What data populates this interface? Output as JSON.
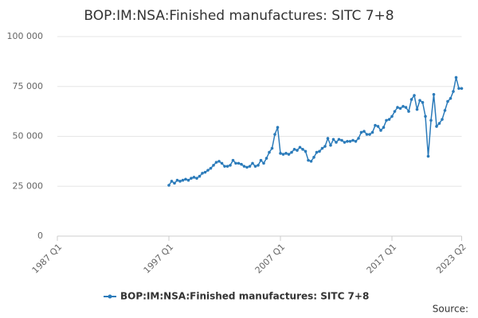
{
  "chart_data": {
    "type": "line",
    "title": "BOP:IM:NSA:Finished manufactures: SITC 7+8",
    "source": "Source:",
    "categories": [
      "1987 Q1",
      null,
      null,
      null,
      null,
      null,
      null,
      null,
      null,
      null,
      null,
      null,
      null,
      null,
      null,
      null,
      null,
      null,
      null,
      null,
      null,
      null,
      null,
      null,
      null,
      null,
      null,
      null,
      null,
      null,
      null,
      null,
      null,
      null,
      null,
      null,
      null,
      null,
      null,
      null,
      "1997 Q1",
      null,
      null,
      null,
      null,
      null,
      null,
      null,
      null,
      null,
      null,
      null,
      null,
      null,
      null,
      null,
      null,
      null,
      null,
      null,
      null,
      null,
      null,
      null,
      null,
      null,
      null,
      null,
      null,
      null,
      null,
      null,
      null,
      null,
      null,
      null,
      null,
      null,
      null,
      null,
      "2007 Q1",
      null,
      null,
      null,
      null,
      null,
      null,
      null,
      null,
      null,
      null,
      null,
      null,
      null,
      null,
      null,
      null,
      null,
      null,
      null,
      null,
      null,
      null,
      null,
      null,
      null,
      null,
      null,
      null,
      null,
      null,
      null,
      null,
      null,
      null,
      null,
      null,
      null,
      null,
      null,
      "2017 Q1",
      null,
      null,
      null,
      null,
      null,
      null,
      null,
      null,
      null,
      null,
      null,
      null,
      null,
      null,
      null,
      null,
      null,
      null,
      null,
      null,
      null,
      null,
      null,
      null,
      "2023 Q2"
    ],
    "series": [
      {
        "name": "BOP:IM:NSA:Finished manufactures: SITC 7+8",
        "color": "#2b7bba",
        "values": [
          null,
          null,
          null,
          null,
          null,
          null,
          null,
          null,
          null,
          null,
          null,
          null,
          null,
          null,
          null,
          null,
          null,
          null,
          null,
          null,
          null,
          null,
          null,
          null,
          null,
          null,
          null,
          null,
          null,
          null,
          null,
          null,
          null,
          null,
          null,
          null,
          null,
          null,
          null,
          null,
          25500,
          27500,
          26500,
          28000,
          27500,
          28000,
          28500,
          28000,
          29000,
          29500,
          29000,
          30000,
          31500,
          32000,
          33000,
          34000,
          35500,
          37000,
          37500,
          36500,
          35000,
          35000,
          35500,
          38000,
          36500,
          36500,
          36000,
          35000,
          34500,
          35000,
          36500,
          35000,
          35500,
          38000,
          36500,
          39000,
          42000,
          44000,
          51000,
          54500,
          41500,
          41000,
          41500,
          41000,
          42000,
          43500,
          43000,
          44500,
          43500,
          42500,
          38000,
          37500,
          39500,
          42000,
          42500,
          44000,
          45000,
          49000,
          45500,
          48500,
          47000,
          48500,
          48000,
          47000,
          47500,
          47500,
          48000,
          47500,
          49000,
          52000,
          52500,
          51000,
          51000,
          52000,
          55500,
          55000,
          53000,
          54500,
          58000,
          58500,
          60000,
          62500,
          64500,
          64000,
          65000,
          64500,
          62500,
          68500,
          70500,
          63500,
          68000,
          67000,
          60000,
          40000,
          58000,
          71000,
          55000,
          56500,
          58500,
          63000,
          67500,
          69000,
          72500,
          79500,
          74000,
          74000
        ]
      }
    ],
    "ylim": [
      0,
      100000
    ],
    "yticks": [
      0,
      {
        "value": 25000,
        "label": "25 000"
      },
      {
        "value": 50000,
        "label": "50 000"
      },
      {
        "value": 75000,
        "label": "75 000"
      },
      {
        "value": 100000,
        "label": "100 000"
      }
    ],
    "grid": true
  }
}
